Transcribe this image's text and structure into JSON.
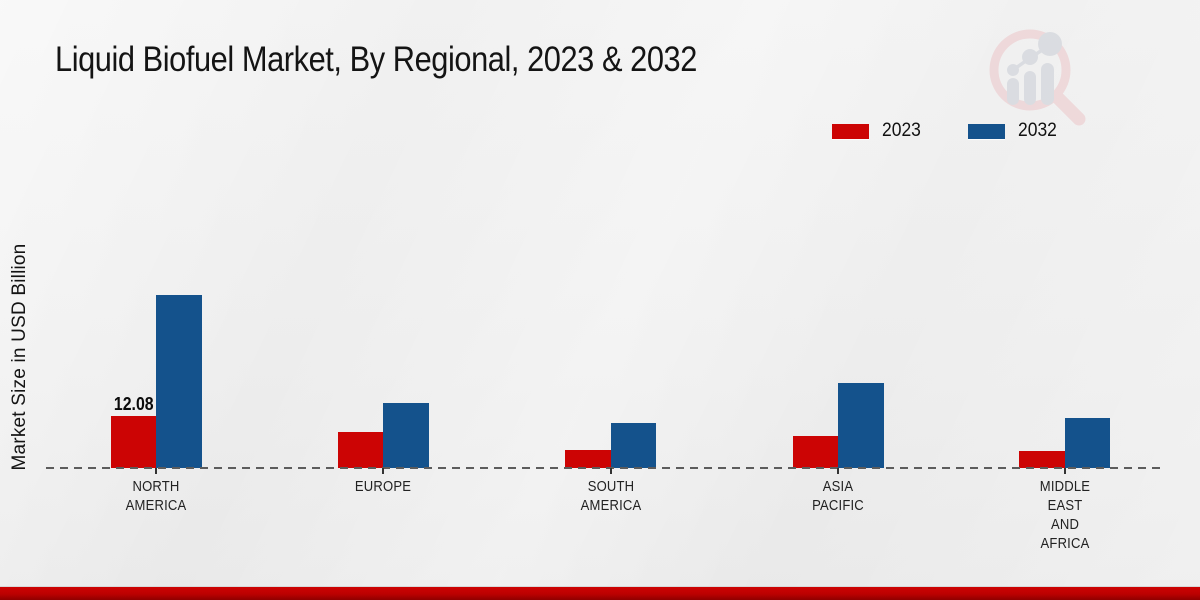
{
  "title": "Liquid Biofuel Market, By Regional, 2023 & 2032",
  "y_axis_label": "Market Size in USD Billion",
  "legend": [
    {
      "label": "2023",
      "color": "#cc0404"
    },
    {
      "label": "2032",
      "color": "#14528c"
    }
  ],
  "colors": {
    "series_2023": "#cc0404",
    "series_2032": "#14528c",
    "baseline": "#5c5c5c",
    "footer_red": "#bb0101",
    "background": "#eeeeee"
  },
  "watermark_icon": "magnifier-bar-chart-logo",
  "chart_data": {
    "type": "bar",
    "title": "Liquid Biofuel Market, By Regional, 2023 & 2032",
    "xlabel": "",
    "ylabel": "Market Size in USD Billion",
    "unit": "USD Billion",
    "ylim": [
      0,
      45
    ],
    "grid": false,
    "legend_position": "top-right",
    "baseline_style": "dashed",
    "categories": [
      "NORTH AMERICA",
      "EUROPE",
      "SOUTH AMERICA",
      "ASIA PACIFIC",
      "MIDDLE EAST AND AFRICA"
    ],
    "category_lines": [
      [
        "NORTH",
        "AMERICA"
      ],
      [
        "EUROPE"
      ],
      [
        "SOUTH",
        "AMERICA"
      ],
      [
        "ASIA",
        "PACIFIC"
      ],
      [
        "MIDDLE",
        "EAST",
        "AND",
        "AFRICA"
      ]
    ],
    "series": [
      {
        "name": "2023",
        "color": "#cc0404",
        "values": [
          12.08,
          8.5,
          4.3,
          7.4,
          3.9
        ],
        "data_labels": [
          "12.08",
          "",
          "",
          "",
          ""
        ]
      },
      {
        "name": "2032",
        "color": "#14528c",
        "values": [
          40.5,
          15.3,
          10.6,
          20.0,
          11.8
        ],
        "data_labels": [
          "",
          "",
          "",
          "",
          ""
        ]
      }
    ]
  }
}
